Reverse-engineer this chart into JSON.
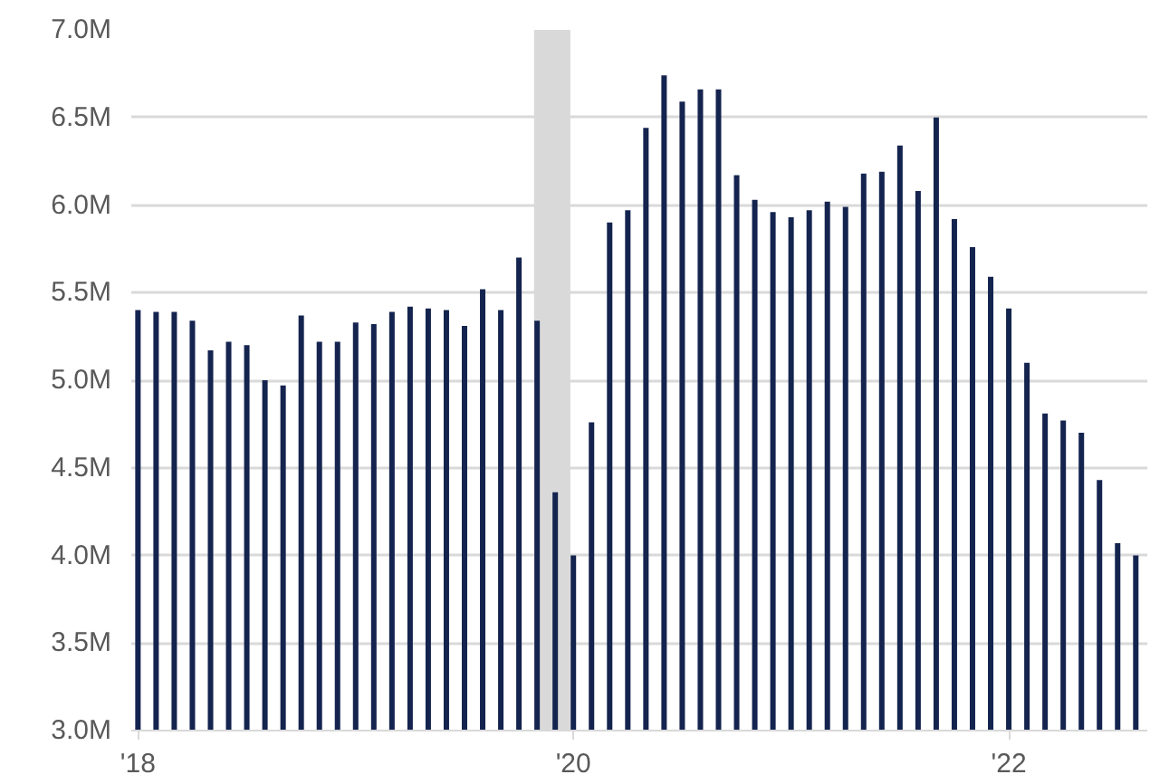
{
  "chart_data": {
    "type": "bar",
    "x": [
      "2018-01",
      "2018-02",
      "2018-03",
      "2018-04",
      "2018-05",
      "2018-06",
      "2018-07",
      "2018-08",
      "2018-09",
      "2018-10",
      "2018-11",
      "2018-12",
      "2019-01",
      "2019-02",
      "2019-03",
      "2019-04",
      "2019-05",
      "2019-06",
      "2019-07",
      "2019-08",
      "2019-09",
      "2019-10",
      "2019-11",
      "2019-12",
      "2020-01",
      "2020-02",
      "2020-03",
      "2020-04",
      "2020-05",
      "2020-06",
      "2020-07",
      "2020-08",
      "2020-09",
      "2020-10",
      "2020-11",
      "2020-12",
      "2021-01",
      "2021-02",
      "2021-03",
      "2021-04",
      "2021-05",
      "2021-06",
      "2021-07",
      "2021-08",
      "2021-09",
      "2021-10",
      "2021-11",
      "2021-12",
      "2022-01",
      "2022-02",
      "2022-03",
      "2022-04",
      "2022-05",
      "2022-06",
      "2022-07",
      "2022-08"
    ],
    "values": [
      5.4,
      5.39,
      5.39,
      5.34,
      5.17,
      5.22,
      5.2,
      5.0,
      4.97,
      5.37,
      5.22,
      5.22,
      5.33,
      5.32,
      5.39,
      5.42,
      5.41,
      5.4,
      5.31,
      5.52,
      5.4,
      5.7,
      5.34,
      4.36,
      4.0,
      4.76,
      5.9,
      5.97,
      6.44,
      6.74,
      6.59,
      6.66,
      6.66,
      6.17,
      6.03,
      5.96,
      5.93,
      5.97,
      6.02,
      5.99,
      6.18,
      6.19,
      6.34,
      6.08,
      6.5,
      5.92,
      5.76,
      5.59,
      5.41,
      5.1,
      4.81,
      4.77,
      4.7,
      4.43,
      4.07,
      4.0
    ],
    "color": "#14244f",
    "xlim": [
      "2017-12-20",
      "2022-08-20"
    ],
    "xticks": [
      {
        "value": "2018-01",
        "label": "'18"
      },
      {
        "value": "2020-01",
        "label": "'20"
      },
      {
        "value": "2022-01",
        "label": "'22"
      }
    ],
    "ylim": [
      3.0,
      7.0
    ],
    "yticks": [
      {
        "value": 3.0,
        "label": "3.0M"
      },
      {
        "value": 3.5,
        "label": "3.5M"
      },
      {
        "value": 4.0,
        "label": "4.0M"
      },
      {
        "value": 4.5,
        "label": "4.5M"
      },
      {
        "value": 5.0,
        "label": "5.0M"
      },
      {
        "value": 5.5,
        "label": "5.5M"
      },
      {
        "value": 6.0,
        "label": "6.0M"
      },
      {
        "value": 6.5,
        "label": "6.5M"
      },
      {
        "value": 7.0,
        "label": "7.0M"
      }
    ],
    "bands": [
      {
        "axis": "x",
        "from": "2019-10-26",
        "to": "2019-12-26",
        "color": "#d9d9d9"
      }
    ],
    "grid": "y"
  }
}
